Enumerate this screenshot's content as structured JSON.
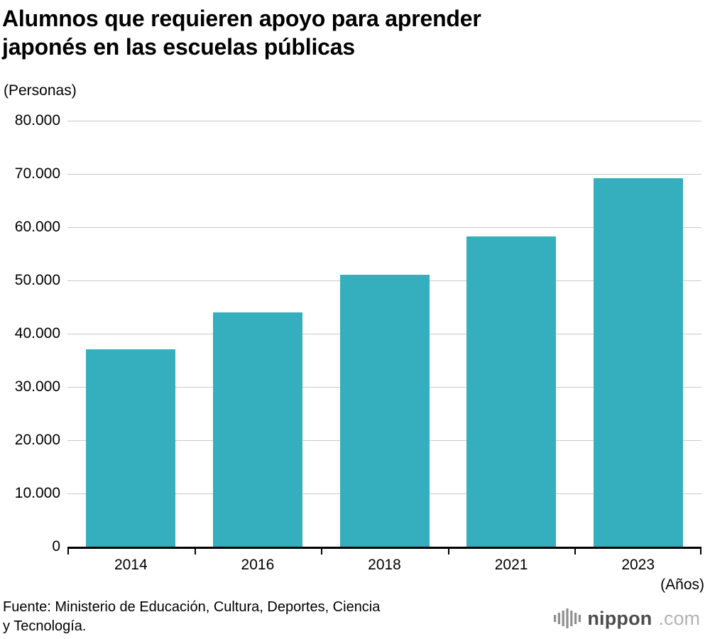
{
  "title": {
    "line1": "Alumnos que requieren apoyo para aprender",
    "line2": "japonés en las escuelas públicas"
  },
  "chart_data": {
    "type": "bar",
    "title": "Alumnos que requieren apoyo para aprender japonés en las escuelas públicas",
    "unit_label": "(Personas)",
    "xlabel": "(Años)",
    "ylabel": "",
    "categories": [
      "2014",
      "2016",
      "2018",
      "2021",
      "2023"
    ],
    "values": [
      37100,
      44000,
      51100,
      58300,
      69200
    ],
    "ylim": [
      0,
      80000
    ],
    "ytick_step": 10000,
    "ytick_labels": [
      "0",
      "10.000",
      "20.000",
      "30.000",
      "40.000",
      "50.000",
      "60.000",
      "70.000",
      "80.000"
    ],
    "grid": true,
    "legend": "none",
    "bar_color": "#35afbd"
  },
  "footer": {
    "source_line1": "Fuente: Ministerio de Educación, Cultura, Deportes, Ciencia",
    "source_line2": "y Tecnología.",
    "logo": {
      "icon": "waveform-bars-icon",
      "text": "nippon",
      "suffix": ".com"
    }
  }
}
